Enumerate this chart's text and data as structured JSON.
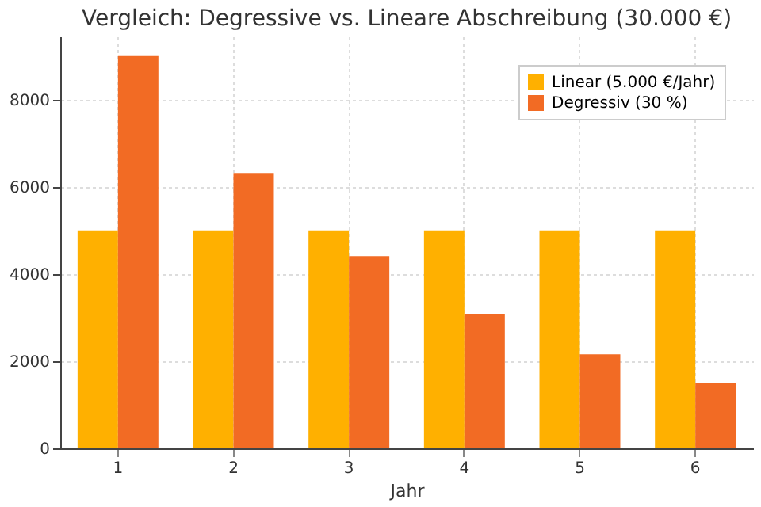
{
  "chart_data": {
    "type": "bar",
    "title": "Vergleich: Degressive vs. Lineare Abschreibung (30.000 €)",
    "xlabel": "Jahr",
    "categories": [
      "1",
      "2",
      "3",
      "4",
      "5",
      "6"
    ],
    "series": [
      {
        "name": "Linear (5.000 €/Jahr)",
        "color": "#ffb000",
        "values": [
          5000,
          5000,
          5000,
          5000,
          5000,
          5000
        ]
      },
      {
        "name": "Degressiv (30 %)",
        "color": "#f26b24",
        "values": [
          9000,
          6300,
          4410,
          3090,
          2160,
          1510
        ]
      }
    ],
    "ylim": [
      0,
      9450
    ],
    "yticks": [
      0,
      2000,
      4000,
      6000,
      8000
    ],
    "grid": true,
    "legend": "top right"
  }
}
